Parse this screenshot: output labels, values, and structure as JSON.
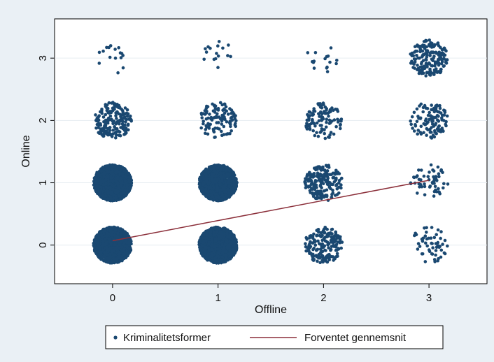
{
  "chart_data": {
    "type": "scatter",
    "xlabel": "Offline",
    "ylabel": "Online",
    "x_ticks": [
      "0",
      "1",
      "2",
      "3"
    ],
    "y_ticks": [
      "0",
      "1",
      "2",
      "3"
    ],
    "xlim": [
      -0.55,
      3.55
    ],
    "ylim": [
      -0.62,
      3.63
    ],
    "grid": true,
    "legend_position": "bottom",
    "series": [
      {
        "name": "Kriminalitetsformer",
        "kind": "jittered-points",
        "color": "#1a4871",
        "groups": [
          {
            "x": 0,
            "y": 0,
            "density": "very high"
          },
          {
            "x": 1,
            "y": 0,
            "density": "very high"
          },
          {
            "x": 2,
            "y": 0,
            "density": "high"
          },
          {
            "x": 3,
            "y": 0,
            "density": "low"
          },
          {
            "x": 0,
            "y": 1,
            "density": "very high"
          },
          {
            "x": 1,
            "y": 1,
            "density": "very high"
          },
          {
            "x": 2,
            "y": 1,
            "density": "high"
          },
          {
            "x": 3,
            "y": 1,
            "density": "low"
          },
          {
            "x": 0,
            "y": 2,
            "density": "high"
          },
          {
            "x": 1,
            "y": 2,
            "density": "medium"
          },
          {
            "x": 2,
            "y": 2,
            "density": "medium"
          },
          {
            "x": 3,
            "y": 2,
            "density": "medium"
          },
          {
            "x": 0,
            "y": 3,
            "density": "very low"
          },
          {
            "x": 1,
            "y": 3,
            "density": "very low"
          },
          {
            "x": 2,
            "y": 3,
            "density": "very low"
          },
          {
            "x": 3,
            "y": 3,
            "density": "high"
          }
        ]
      },
      {
        "name": "Forventet gennemsnit",
        "kind": "line",
        "color": "#8b2f3a",
        "points": [
          [
            0,
            0.07
          ],
          [
            3,
            1.04
          ]
        ]
      }
    ]
  }
}
